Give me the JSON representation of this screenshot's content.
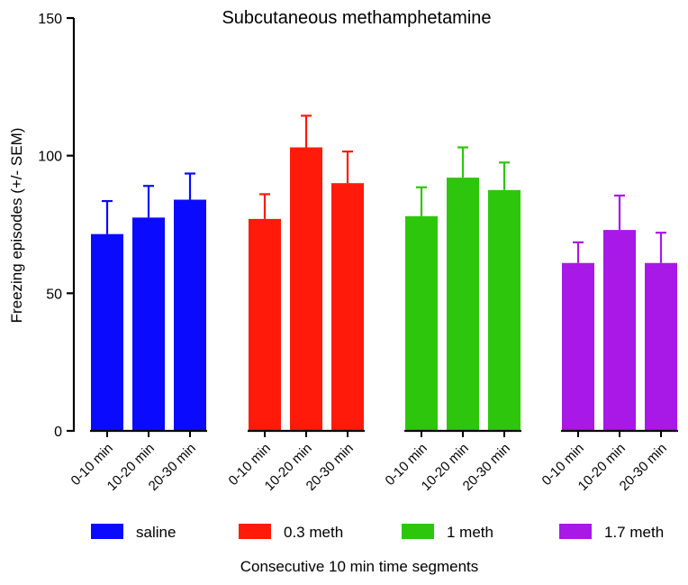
{
  "chart_data": {
    "type": "bar",
    "title": "Subcutaneous methamphetamine",
    "xlabel": "Consecutive 10 min time segments",
    "ylabel": "Freezing episodes  (+/- SEM)",
    "ylim": [
      0,
      150
    ],
    "yticks": [
      0,
      50,
      100,
      150
    ],
    "grid": false,
    "legend_position": "bottom",
    "groups": [
      {
        "name": "saline",
        "color": "#0a0aff",
        "categories": [
          "0-10 min",
          "10-20 min",
          "20-30 min"
        ],
        "values": [
          71.5,
          77.5,
          84
        ],
        "errors": [
          12,
          11.5,
          9.5
        ]
      },
      {
        "name": "0.3 meth",
        "color": "#ff1a0a",
        "categories": [
          "0-10 min",
          "10-20 min",
          "20-30 min"
        ],
        "values": [
          77,
          103,
          90
        ],
        "errors": [
          9,
          11.5,
          11.5
        ]
      },
      {
        "name": "1 meth",
        "color": "#2dc60c",
        "categories": [
          "0-10 min",
          "10-20 min",
          "20-30 min"
        ],
        "values": [
          78,
          92,
          87.5
        ],
        "errors": [
          10.5,
          11,
          10
        ]
      },
      {
        "name": "1.7 meth",
        "color": "#a818e6",
        "categories": [
          "0-10 min",
          "10-20 min",
          "20-30 min"
        ],
        "values": [
          61,
          73,
          61
        ],
        "errors": [
          7.5,
          12.5,
          11
        ]
      }
    ]
  }
}
